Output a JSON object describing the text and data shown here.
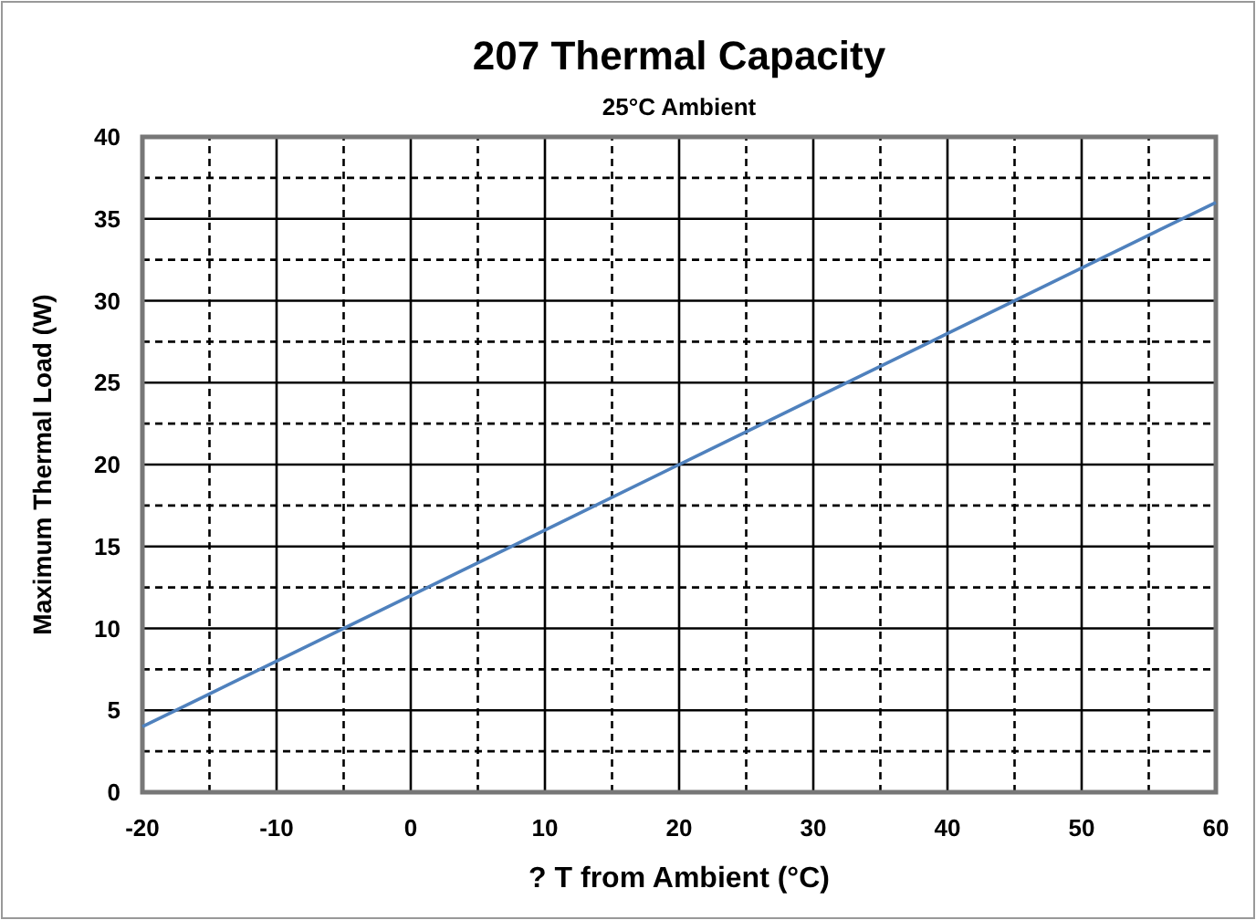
{
  "chart_data": {
    "type": "line",
    "title": "207 Thermal Capacity",
    "subtitle": "25°C Ambient",
    "xlabel": "? T from Ambient (°C)",
    "ylabel": "Maximum Thermal Load (W)",
    "x": [
      -20,
      -10,
      0,
      10,
      20,
      30,
      40,
      50,
      60
    ],
    "series": [
      {
        "color": "#4f81bd",
        "values": [
          4,
          8,
          12,
          16,
          20,
          24,
          28,
          32,
          36
        ]
      }
    ],
    "xlim": [
      -20,
      60
    ],
    "ylim": [
      0,
      40
    ],
    "xticks": [
      -20,
      {
        "value": -15,
        "label": null
      },
      -10,
      {
        "value": -5,
        "label": null
      },
      0,
      {
        "value": 5,
        "label": null
      },
      10,
      {
        "value": 15,
        "label": null
      },
      20,
      {
        "value": 25,
        "label": null
      },
      30,
      {
        "value": 35,
        "label": null
      },
      40,
      {
        "value": 45,
        "label": null
      },
      50,
      {
        "value": 55,
        "label": null
      },
      60
    ],
    "yticks": [
      0,
      {
        "value": 2.5,
        "label": null
      },
      5,
      {
        "value": 7.5,
        "label": null
      },
      10,
      {
        "value": 12.5,
        "label": null
      },
      15,
      {
        "value": 17.5,
        "label": null
      },
      20,
      {
        "value": 22.5,
        "label": null
      },
      25,
      {
        "value": 27.5,
        "label": null
      },
      30,
      {
        "value": 32.5,
        "label": null
      },
      35,
      {
        "value": 37.5,
        "label": null
      },
      40
    ],
    "grid": true,
    "marker": "none",
    "line_style": "solid"
  }
}
